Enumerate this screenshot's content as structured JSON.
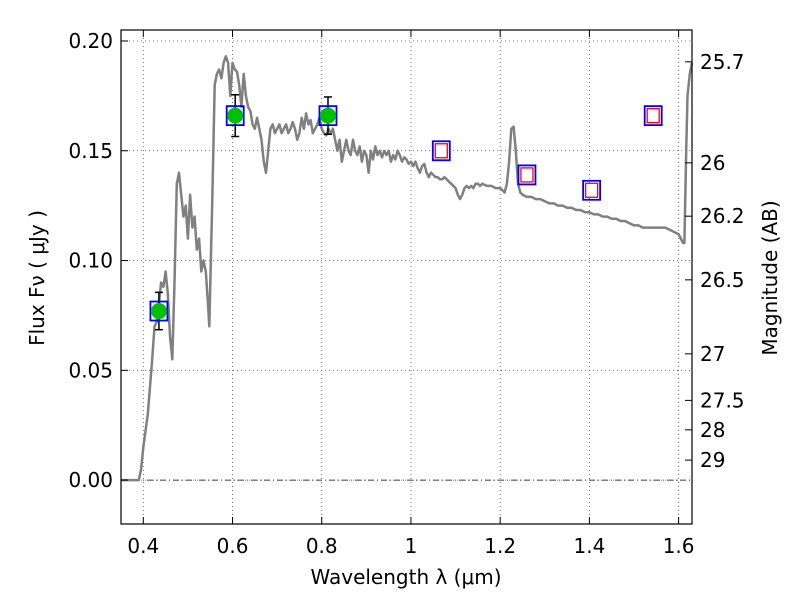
{
  "chart_data": {
    "type": "line",
    "xlabel": "Wavelength  λ (μm)",
    "ylabel": "Flux  Fν  ( μJy )",
    "y2label": "Magnitude (AB)",
    "xlim": [
      0.35,
      1.63
    ],
    "ylim": [
      -0.02,
      0.205
    ],
    "xticks": [
      0.4,
      0.6,
      0.8,
      1.0,
      1.2,
      1.4,
      1.6
    ],
    "xtick_labels": [
      "0.4",
      "0.6",
      "0.8",
      "1",
      "1.2",
      "1.4",
      "1.6"
    ],
    "yticks": [
      0.0,
      0.05,
      0.1,
      0.15,
      0.2
    ],
    "ytick_labels": [
      "0.00",
      "0.05",
      "0.10",
      "0.15",
      "0.20"
    ],
    "y2ticks": [
      {
        "label": "25.7",
        "flux": 0.1905
      },
      {
        "label": "26",
        "flux": 0.1445
      },
      {
        "label": "26.2",
        "flux": 0.1202
      },
      {
        "label": "26.5",
        "flux": 0.0912
      },
      {
        "label": "27",
        "flux": 0.0575
      },
      {
        "label": "27.5",
        "flux": 0.0363
      },
      {
        "label": "28",
        "flux": 0.0229
      },
      {
        "label": "29",
        "flux": 0.0091
      }
    ],
    "grid": true,
    "zero_line": 0.0,
    "colors": {
      "sed": "#808080",
      "detection_fill": "#00c000",
      "box_edge": "#0000ff",
      "upper_limit_edge": "#ff0000",
      "errorbar": "#000000",
      "grid": "#555555"
    },
    "sed_curve": [
      [
        0.35,
        0.0
      ],
      [
        0.39,
        0.0
      ],
      [
        0.395,
        0.005
      ],
      [
        0.4,
        0.015
      ],
      [
        0.41,
        0.03
      ],
      [
        0.42,
        0.055
      ],
      [
        0.425,
        0.07
      ],
      [
        0.43,
        0.072
      ],
      [
        0.435,
        0.08
      ],
      [
        0.44,
        0.09
      ],
      [
        0.445,
        0.088
      ],
      [
        0.45,
        0.095
      ],
      [
        0.455,
        0.085
      ],
      [
        0.46,
        0.065
      ],
      [
        0.465,
        0.055
      ],
      [
        0.47,
        0.09
      ],
      [
        0.475,
        0.135
      ],
      [
        0.48,
        0.14
      ],
      [
        0.485,
        0.13
      ],
      [
        0.49,
        0.12
      ],
      [
        0.495,
        0.125
      ],
      [
        0.5,
        0.11
      ],
      [
        0.505,
        0.13
      ],
      [
        0.51,
        0.115
      ],
      [
        0.515,
        0.12
      ],
      [
        0.52,
        0.105
      ],
      [
        0.525,
        0.11
      ],
      [
        0.53,
        0.095
      ],
      [
        0.535,
        0.1
      ],
      [
        0.54,
        0.095
      ],
      [
        0.545,
        0.08
      ],
      [
        0.548,
        0.07
      ],
      [
        0.555,
        0.13
      ],
      [
        0.56,
        0.18
      ],
      [
        0.565,
        0.185
      ],
      [
        0.57,
        0.187
      ],
      [
        0.575,
        0.183
      ],
      [
        0.58,
        0.19
      ],
      [
        0.585,
        0.193
      ],
      [
        0.59,
        0.19
      ],
      [
        0.595,
        0.175
      ],
      [
        0.6,
        0.19
      ],
      [
        0.605,
        0.187
      ],
      [
        0.61,
        0.186
      ],
      [
        0.615,
        0.18
      ],
      [
        0.62,
        0.17
      ],
      [
        0.625,
        0.185
      ],
      [
        0.63,
        0.175
      ],
      [
        0.635,
        0.17
      ],
      [
        0.64,
        0.168
      ],
      [
        0.645,
        0.162
      ],
      [
        0.65,
        0.16
      ],
      [
        0.655,
        0.165
      ],
      [
        0.66,
        0.16
      ],
      [
        0.665,
        0.155
      ],
      [
        0.67,
        0.145
      ],
      [
        0.675,
        0.14
      ],
      [
        0.68,
        0.15
      ],
      [
        0.685,
        0.16
      ],
      [
        0.69,
        0.162
      ],
      [
        0.695,
        0.158
      ],
      [
        0.7,
        0.16
      ],
      [
        0.705,
        0.162
      ],
      [
        0.71,
        0.158
      ],
      [
        0.715,
        0.16
      ],
      [
        0.72,
        0.162
      ],
      [
        0.725,
        0.158
      ],
      [
        0.73,
        0.16
      ],
      [
        0.735,
        0.163
      ],
      [
        0.74,
        0.16
      ],
      [
        0.745,
        0.155
      ],
      [
        0.75,
        0.158
      ],
      [
        0.755,
        0.165
      ],
      [
        0.76,
        0.16
      ],
      [
        0.765,
        0.167
      ],
      [
        0.77,
        0.162
      ],
      [
        0.775,
        0.164
      ],
      [
        0.78,
        0.158
      ],
      [
        0.785,
        0.16
      ],
      [
        0.79,
        0.162
      ],
      [
        0.795,
        0.165
      ],
      [
        0.8,
        0.16
      ],
      [
        0.805,
        0.158
      ],
      [
        0.81,
        0.157
      ],
      [
        0.815,
        0.16
      ],
      [
        0.82,
        0.158
      ],
      [
        0.825,
        0.16
      ],
      [
        0.83,
        0.155
      ],
      [
        0.835,
        0.15
      ],
      [
        0.84,
        0.155
      ],
      [
        0.845,
        0.145
      ],
      [
        0.85,
        0.15
      ],
      [
        0.855,
        0.155
      ],
      [
        0.86,
        0.15
      ],
      [
        0.865,
        0.148
      ],
      [
        0.87,
        0.155
      ],
      [
        0.875,
        0.15
      ],
      [
        0.88,
        0.148
      ],
      [
        0.885,
        0.152
      ],
      [
        0.89,
        0.145
      ],
      [
        0.895,
        0.15
      ],
      [
        0.9,
        0.148
      ],
      [
        0.905,
        0.14
      ],
      [
        0.91,
        0.15
      ],
      [
        0.915,
        0.146
      ],
      [
        0.92,
        0.152
      ],
      [
        0.925,
        0.148
      ],
      [
        0.93,
        0.15
      ],
      [
        0.935,
        0.147
      ],
      [
        0.94,
        0.15
      ],
      [
        0.945,
        0.148
      ],
      [
        0.95,
        0.15
      ],
      [
        0.955,
        0.145
      ],
      [
        0.96,
        0.148
      ],
      [
        0.965,
        0.146
      ],
      [
        0.97,
        0.15
      ],
      [
        0.975,
        0.148
      ],
      [
        0.98,
        0.145
      ],
      [
        0.985,
        0.147
      ],
      [
        0.99,
        0.146
      ],
      [
        0.995,
        0.144
      ],
      [
        1.0,
        0.145
      ],
      [
        1.005,
        0.143
      ],
      [
        1.01,
        0.145
      ],
      [
        1.015,
        0.142
      ],
      [
        1.02,
        0.14
      ],
      [
        1.025,
        0.143
      ],
      [
        1.03,
        0.144
      ],
      [
        1.035,
        0.14
      ],
      [
        1.04,
        0.138
      ],
      [
        1.045,
        0.14
      ],
      [
        1.05,
        0.139
      ],
      [
        1.055,
        0.138
      ],
      [
        1.06,
        0.138
      ],
      [
        1.065,
        0.137
      ],
      [
        1.07,
        0.137
      ],
      [
        1.075,
        0.138
      ],
      [
        1.08,
        0.137
      ],
      [
        1.09,
        0.135
      ],
      [
        1.1,
        0.133
      ],
      [
        1.105,
        0.13
      ],
      [
        1.11,
        0.128
      ],
      [
        1.115,
        0.13
      ],
      [
        1.12,
        0.133
      ],
      [
        1.125,
        0.134
      ],
      [
        1.13,
        0.133
      ],
      [
        1.135,
        0.134
      ],
      [
        1.14,
        0.133
      ],
      [
        1.145,
        0.135
      ],
      [
        1.15,
        0.135
      ],
      [
        1.155,
        0.134
      ],
      [
        1.16,
        0.135
      ],
      [
        1.17,
        0.134
      ],
      [
        1.18,
        0.134
      ],
      [
        1.19,
        0.133
      ],
      [
        1.2,
        0.133
      ],
      [
        1.205,
        0.132
      ],
      [
        1.21,
        0.131
      ],
      [
        1.215,
        0.135
      ],
      [
        1.22,
        0.145
      ],
      [
        1.225,
        0.16
      ],
      [
        1.23,
        0.161
      ],
      [
        1.235,
        0.15
      ],
      [
        1.24,
        0.135
      ],
      [
        1.245,
        0.131
      ],
      [
        1.25,
        0.13
      ],
      [
        1.26,
        0.129
      ],
      [
        1.27,
        0.129
      ],
      [
        1.28,
        0.128
      ],
      [
        1.29,
        0.128
      ],
      [
        1.3,
        0.127
      ],
      [
        1.31,
        0.126
      ],
      [
        1.32,
        0.126
      ],
      [
        1.33,
        0.125
      ],
      [
        1.34,
        0.125
      ],
      [
        1.35,
        0.124
      ],
      [
        1.36,
        0.124
      ],
      [
        1.37,
        0.123
      ],
      [
        1.38,
        0.123
      ],
      [
        1.39,
        0.122
      ],
      [
        1.4,
        0.122
      ],
      [
        1.41,
        0.121
      ],
      [
        1.42,
        0.121
      ],
      [
        1.43,
        0.12
      ],
      [
        1.44,
        0.12
      ],
      [
        1.45,
        0.119
      ],
      [
        1.46,
        0.119
      ],
      [
        1.47,
        0.118
      ],
      [
        1.48,
        0.118
      ],
      [
        1.49,
        0.117
      ],
      [
        1.5,
        0.116
      ],
      [
        1.51,
        0.116
      ],
      [
        1.52,
        0.115
      ],
      [
        1.53,
        0.115
      ],
      [
        1.54,
        0.115
      ],
      [
        1.55,
        0.115
      ],
      [
        1.56,
        0.115
      ],
      [
        1.57,
        0.115
      ],
      [
        1.58,
        0.114
      ],
      [
        1.59,
        0.113
      ],
      [
        1.6,
        0.112
      ],
      [
        1.605,
        0.11
      ],
      [
        1.61,
        0.108
      ],
      [
        1.613,
        0.108
      ],
      [
        1.617,
        0.15
      ],
      [
        1.62,
        0.175
      ],
      [
        1.625,
        0.185
      ],
      [
        1.63,
        0.19
      ]
    ],
    "detections": [
      {
        "x": 0.435,
        "y": 0.077,
        "yerr": 0.0085
      },
      {
        "x": 0.606,
        "y": 0.166,
        "yerr": 0.0095
      },
      {
        "x": 0.814,
        "y": 0.166,
        "yerr": 0.0085
      }
    ],
    "model_boxes": [
      {
        "x": 0.435,
        "y": 0.077
      },
      {
        "x": 0.606,
        "y": 0.166
      },
      {
        "x": 0.814,
        "y": 0.166
      },
      {
        "x": 1.068,
        "y": 0.15
      },
      {
        "x": 1.26,
        "y": 0.139
      },
      {
        "x": 1.405,
        "y": 0.132
      },
      {
        "x": 1.543,
        "y": 0.166
      }
    ],
    "upper_limits": [
      {
        "x": 1.068,
        "y": 0.15
      },
      {
        "x": 1.26,
        "y": 0.139
      },
      {
        "x": 1.405,
        "y": 0.132
      },
      {
        "x": 1.543,
        "y": 0.166
      }
    ]
  }
}
